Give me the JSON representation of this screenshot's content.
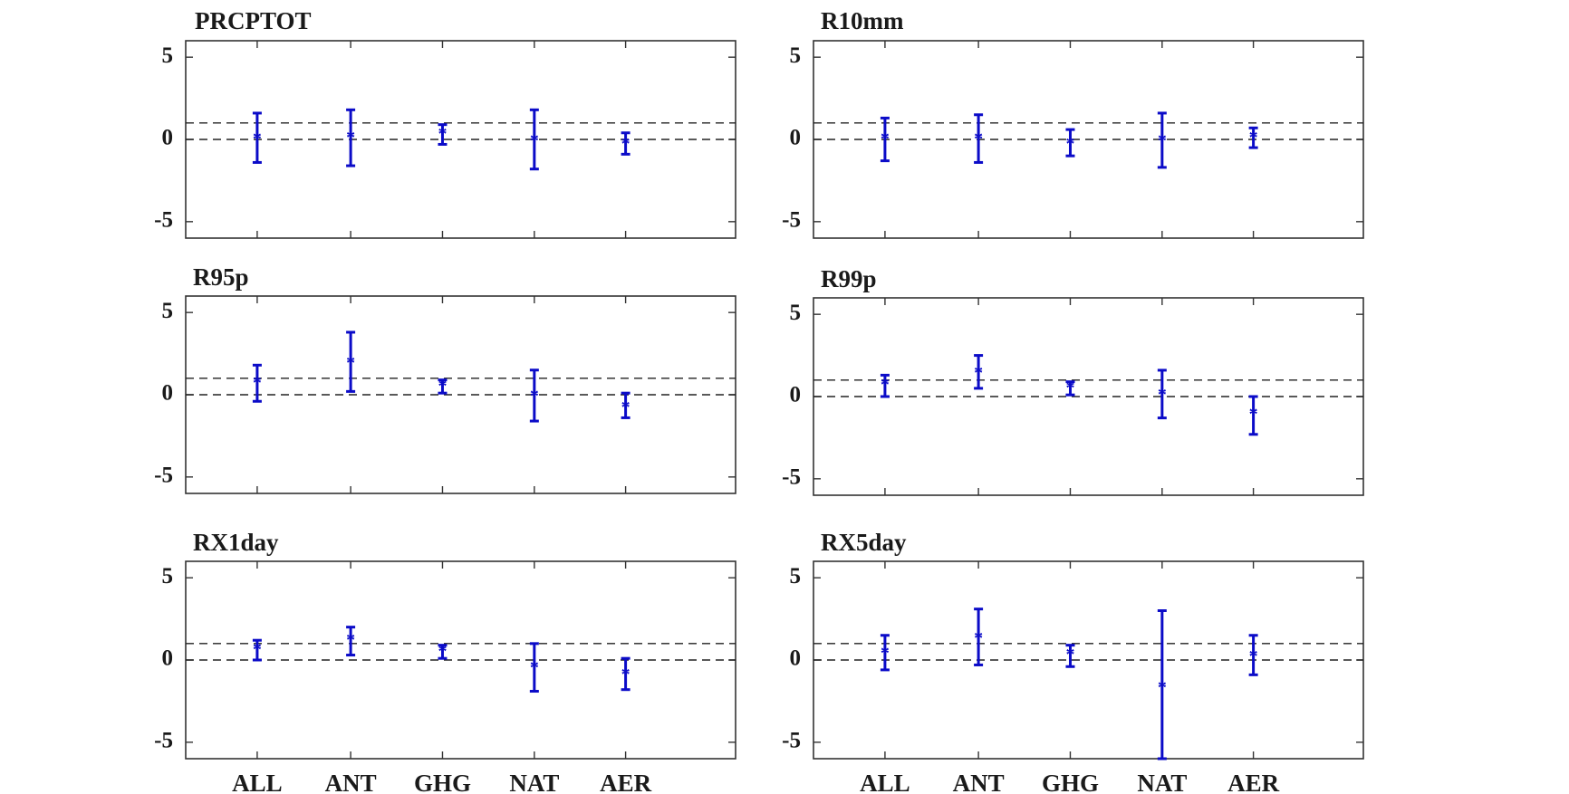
{
  "chart_data": [
    {
      "type": "errorbar",
      "title": "PRCPTOT",
      "categories": [
        "ALL",
        "ANT",
        "GHG",
        "NAT",
        "AER"
      ],
      "values": [
        0.0,
        0.1,
        0.3,
        -0.1,
        -0.3
      ],
      "lower": [
        -1.4,
        -1.6,
        -0.3,
        -1.8,
        -0.9
      ],
      "upper": [
        1.6,
        1.8,
        0.9,
        1.8,
        0.4
      ],
      "reference_lines": [
        0,
        1
      ],
      "ylim": [
        -6,
        6
      ],
      "yticks": [
        "5",
        "0",
        "-5"
      ]
    },
    {
      "type": "errorbar",
      "title": "R10mm",
      "categories": [
        "ALL",
        "ANT",
        "GHG",
        "NAT",
        "AER"
      ],
      "values": [
        0.0,
        0.0,
        -0.3,
        -0.1,
        0.1
      ],
      "lower": [
        -1.3,
        -1.4,
        -1.0,
        -1.7,
        -0.5
      ],
      "upper": [
        1.3,
        1.5,
        0.6,
        1.6,
        0.7
      ],
      "reference_lines": [
        0,
        1
      ],
      "ylim": [
        -6,
        6
      ],
      "yticks": [
        "5",
        "0",
        "-5"
      ]
    },
    {
      "type": "errorbar",
      "title": "R95p",
      "categories": [
        "ALL",
        "ANT",
        "GHG",
        "NAT",
        "AER"
      ],
      "values": [
        0.7,
        1.9,
        0.5,
        -0.1,
        -0.8
      ],
      "lower": [
        -0.4,
        0.2,
        0.1,
        -1.6,
        -1.4
      ],
      "upper": [
        1.8,
        3.8,
        0.9,
        1.5,
        0.1
      ],
      "reference_lines": [
        0,
        1
      ],
      "ylim": [
        -6,
        6
      ],
      "yticks": [
        "5",
        "0",
        "-5"
      ]
    },
    {
      "type": "errorbar",
      "title": "R99p",
      "categories": [
        "ALL",
        "ANT",
        "GHG",
        "NAT",
        "AER"
      ],
      "values": [
        0.7,
        1.4,
        0.5,
        0.1,
        -1.1
      ],
      "lower": [
        0.0,
        0.5,
        0.1,
        -1.3,
        -2.3
      ],
      "upper": [
        1.3,
        2.5,
        0.9,
        1.6,
        0.0
      ],
      "reference_lines": [
        0,
        1
      ],
      "ylim": [
        -6,
        6
      ],
      "yticks": [
        "5",
        "0",
        "-5"
      ]
    },
    {
      "type": "errorbar",
      "title": "RX1day",
      "categories": [
        "ALL",
        "ANT",
        "GHG",
        "NAT",
        "AER"
      ],
      "values": [
        0.6,
        1.2,
        0.5,
        -0.5,
        -0.9
      ],
      "lower": [
        0.0,
        0.3,
        0.1,
        -1.9,
        -1.8
      ],
      "upper": [
        1.2,
        2.0,
        0.9,
        1.0,
        0.1
      ],
      "reference_lines": [
        0,
        1
      ],
      "ylim": [
        -6,
        6
      ],
      "yticks": [
        "5",
        "0",
        "-5"
      ]
    },
    {
      "type": "errorbar",
      "title": "RX5day",
      "categories": [
        "ALL",
        "ANT",
        "GHG",
        "NAT",
        "AER"
      ],
      "values": [
        0.4,
        1.3,
        0.3,
        -1.7,
        0.2
      ],
      "lower": [
        -0.6,
        -0.3,
        -0.4,
        -6.0,
        -0.9
      ],
      "upper": [
        1.5,
        3.1,
        0.9,
        3.0,
        1.5
      ],
      "reference_lines": [
        0,
        1
      ],
      "ylim": [
        -6,
        6
      ],
      "yticks": [
        "5",
        "0",
        "-5"
      ]
    }
  ],
  "style": {
    "series_color": "#0b0bc8",
    "axis_color": "#333333",
    "reference_line_color": "#222222"
  }
}
